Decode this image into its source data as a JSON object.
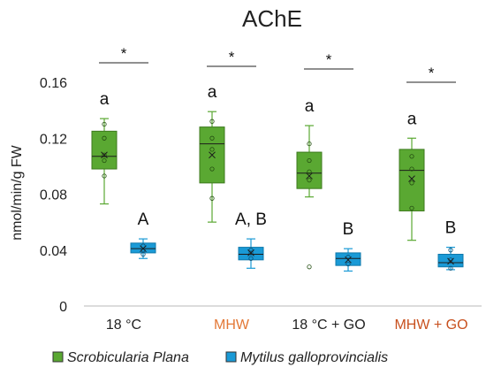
{
  "chart_data": {
    "type": "box",
    "title": "AChE",
    "ylabel": "nmol/min/g FW",
    "xlabel": "",
    "ylim": [
      0,
      0.16
    ],
    "yticks": [
      "0",
      "0.04",
      "0.08",
      "0.12",
      "0.16"
    ],
    "categories": [
      "18 °C",
      "MHW",
      "18 °C + GO",
      "MHW + GO"
    ],
    "category_colors": [
      "#222222",
      "#e37836",
      "#222222",
      "#c8501e"
    ],
    "series": [
      {
        "name": "Scrobicularia Plana",
        "color": "#5aa832",
        "boxes": [
          {
            "min": 0.073,
            "q1": 0.098,
            "median": 0.107,
            "q3": 0.125,
            "max": 0.134,
            "mean": 0.108,
            "points": [
              0.093,
              0.104,
              0.108,
              0.12,
              0.13
            ]
          },
          {
            "min": 0.06,
            "q1": 0.088,
            "median": 0.116,
            "q3": 0.128,
            "max": 0.139,
            "mean": 0.108,
            "points": [
              0.077,
              0.098,
              0.112,
              0.12,
              0.132
            ]
          },
          {
            "min": 0.078,
            "q1": 0.084,
            "median": 0.095,
            "q3": 0.11,
            "max": 0.129,
            "mean": 0.093,
            "points": [
              0.028,
              0.09,
              0.096,
              0.104,
              0.116
            ]
          },
          {
            "min": 0.047,
            "q1": 0.068,
            "median": 0.097,
            "q3": 0.112,
            "max": 0.12,
            "mean": 0.091,
            "points": [
              0.07,
              0.088,
              0.098,
              0.107
            ]
          }
        ]
      },
      {
        "name": "Mytilus galloprovincialis",
        "color": "#1a9ad6",
        "boxes": [
          {
            "min": 0.034,
            "q1": 0.038,
            "median": 0.041,
            "q3": 0.045,
            "max": 0.048,
            "mean": 0.041,
            "points": [
              0.037,
              0.04,
              0.043
            ]
          },
          {
            "min": 0.027,
            "q1": 0.033,
            "median": 0.037,
            "q3": 0.042,
            "max": 0.048,
            "mean": 0.038,
            "points": [
              0.034,
              0.038,
              0.04
            ]
          },
          {
            "min": 0.025,
            "q1": 0.029,
            "median": 0.034,
            "q3": 0.038,
            "max": 0.041,
            "mean": 0.033,
            "points": [
              0.03,
              0.035
            ]
          },
          {
            "min": 0.026,
            "q1": 0.028,
            "median": 0.031,
            "q3": 0.037,
            "max": 0.042,
            "mean": 0.032,
            "points": [
              0.027,
              0.033,
              0.04
            ]
          }
        ]
      }
    ],
    "significance_letters": [
      {
        "series": 0,
        "labels": [
          "a",
          "a",
          "a",
          "a"
        ]
      },
      {
        "series": 1,
        "labels": [
          "A",
          "A, B",
          "B",
          "B"
        ]
      }
    ],
    "significance_stars": [
      "*",
      "*",
      "*",
      "*"
    ],
    "legend_position": "bottom",
    "grid": false
  }
}
